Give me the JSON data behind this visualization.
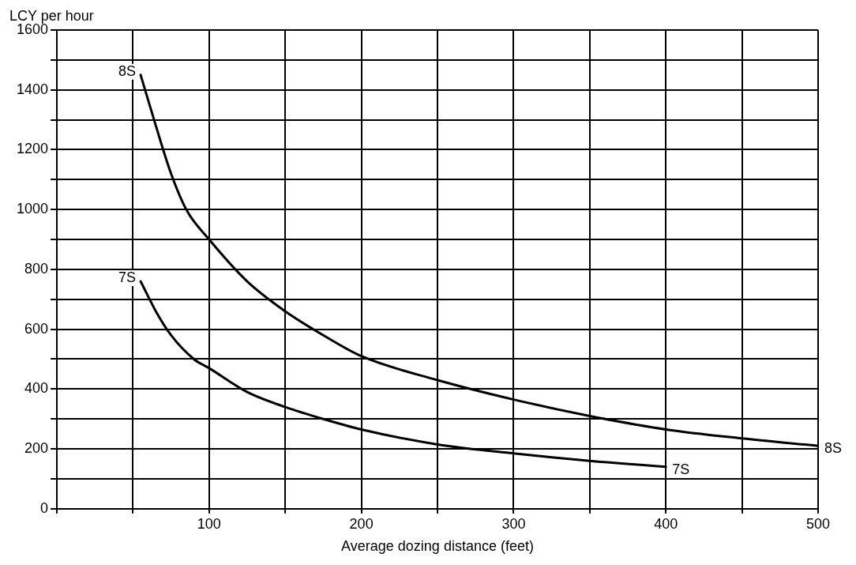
{
  "chart_data": {
    "type": "line",
    "xlabel": "Average dozing distance (feet)",
    "ylabel": "LCY per hour",
    "series": [
      {
        "name": "8S",
        "color": "#000000",
        "x": [
          55,
          65,
          75,
          85,
          100,
          125,
          150,
          175,
          200,
          250,
          300,
          350,
          400,
          450,
          500
        ],
        "values": [
          1450,
          1280,
          1120,
          1000,
          900,
          760,
          660,
          580,
          510,
          430,
          365,
          310,
          265,
          235,
          210
        ]
      },
      {
        "name": "7S",
        "color": "#000000",
        "x": [
          55,
          65,
          75,
          90,
          100,
          125,
          150,
          175,
          200,
          250,
          300,
          350,
          400
        ],
        "values": [
          760,
          660,
          580,
          500,
          470,
          390,
          340,
          300,
          265,
          215,
          185,
          160,
          140
        ]
      }
    ],
    "xlim": [
      0,
      500
    ],
    "xticks": [
      {
        "value": 0,
        "label": null
      },
      {
        "value": 50,
        "label": null
      },
      100,
      {
        "value": 150,
        "label": null
      },
      200,
      {
        "value": 250,
        "label": null
      },
      300,
      {
        "value": 350,
        "label": null
      },
      400,
      {
        "value": 450,
        "label": null
      },
      500
    ],
    "ylim": [
      0,
      1600
    ],
    "yticks": [
      0,
      {
        "value": 100,
        "label": null
      },
      200,
      {
        "value": 300,
        "label": null
      },
      400,
      {
        "value": 500,
        "label": null
      },
      600,
      {
        "value": 700,
        "label": null
      },
      800,
      {
        "value": 900,
        "label": null
      },
      1000,
      {
        "value": 1100,
        "label": null
      },
      1200,
      {
        "value": 1300,
        "label": null
      },
      1400,
      {
        "value": 1500,
        "label": null
      },
      1600
    ],
    "grid": true,
    "marker": "none",
    "line_style": "solid",
    "legend": false
  }
}
